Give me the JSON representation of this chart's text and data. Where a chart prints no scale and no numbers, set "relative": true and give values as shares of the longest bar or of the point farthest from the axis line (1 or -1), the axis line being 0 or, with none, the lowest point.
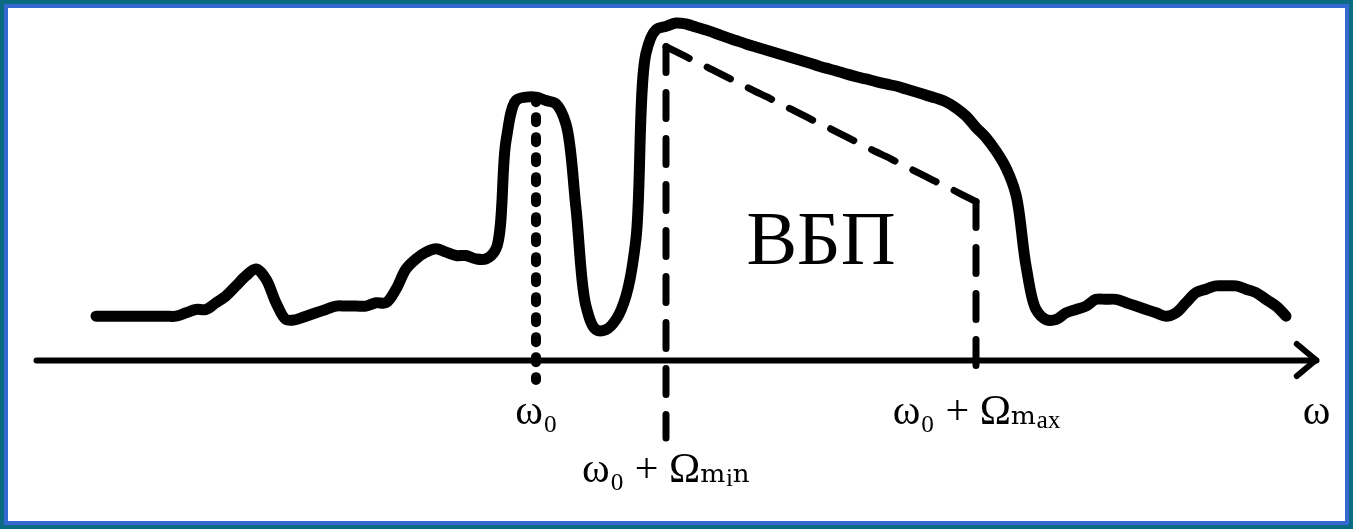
{
  "chart_data": {
    "type": "line",
    "relative": true,
    "categories": [
      null,
      null,
      null,
      null,
      null,
      null,
      null,
      null,
      null,
      null,
      null,
      null,
      null,
      null,
      null,
      null,
      null,
      null,
      null,
      null,
      null,
      null,
      null,
      null,
      null,
      null,
      null,
      null,
      null,
      null,
      null,
      null,
      null,
      null,
      null,
      null,
      null,
      null,
      null,
      null,
      null,
      null,
      null,
      null,
      null,
      null,
      null,
      null,
      null,
      null,
      "ω₀",
      null,
      null,
      null,
      null,
      null,
      null,
      null,
      null,
      null,
      null,
      null,
      null,
      "ω₀ + Ωₘᵢₙ",
      null,
      null,
      null,
      null,
      null,
      null,
      null,
      null,
      null,
      null,
      null,
      null,
      null,
      null,
      null,
      null,
      null,
      null,
      null,
      null,
      null,
      null,
      null,
      null,
      null,
      null,
      null,
      null,
      null,
      null,
      "ω₀ + Ωₘₐₓ",
      null,
      null,
      null,
      null,
      null,
      null,
      null,
      null,
      null,
      null,
      null,
      null,
      null,
      null,
      null,
      null,
      null,
      null,
      null,
      null,
      null,
      null,
      null,
      null,
      null,
      null,
      null,
      null,
      null,
      null,
      null,
      null,
      null,
      "ω"
    ],
    "series": [
      {
        "color": "#000000",
        "values": [
          null,
          null,
          null,
          null,
          null,
          null,
          0.13,
          0.13,
          0.13,
          0.13,
          0.13,
          0.13,
          0.13,
          0.13,
          0.13,
          0.14,
          0.15,
          0.15,
          0.17,
          0.19,
          0.22,
          0.25,
          0.27,
          0.24,
          0.17,
          0.12,
          0.12,
          0.13,
          0.14,
          0.15,
          0.16,
          0.16,
          0.16,
          0.16,
          0.17,
          0.17,
          0.21,
          0.27,
          0.3,
          0.32,
          0.33,
          0.32,
          0.31,
          0.31,
          0.3,
          0.3,
          0.33,
          0.65,
          0.77,
          0.78,
          0.78,
          0.77,
          0.76,
          0.7,
          0.45,
          0.16,
          0.09,
          0.09,
          0.12,
          0.19,
          0.36,
          0.91,
          0.98,
          0.99,
          1.0,
          0.997,
          0.988,
          0.979,
          0.969,
          0.958,
          0.948,
          0.938,
          0.929,
          0.92,
          0.911,
          0.902,
          0.893,
          0.884,
          0.875,
          0.866,
          0.858,
          0.849,
          0.841,
          0.834,
          0.826,
          0.819,
          0.813,
          0.804,
          0.795,
          0.786,
          0.777,
          0.766,
          0.748,
          0.724,
          0.69,
          0.66,
          0.62,
          0.57,
          0.49,
          0.28,
          0.15,
          0.12,
          0.12,
          0.14,
          0.15,
          0.16,
          0.18,
          0.18,
          0.18,
          0.17,
          0.16,
          0.15,
          0.14,
          0.13,
          0.14,
          0.17,
          0.2,
          0.21,
          0.22,
          0.22,
          0.22,
          0.21,
          0.2,
          0.18,
          0.16,
          0.13,
          null,
          null,
          null
        ]
      },
      {
        "name": "ВБП",
        "color": "#000000",
        "line_style": "dashed",
        "values": [
          null,
          null,
          null,
          null,
          null,
          null,
          null,
          null,
          null,
          null,
          null,
          null,
          null,
          null,
          null,
          null,
          null,
          null,
          null,
          null,
          null,
          null,
          null,
          null,
          null,
          null,
          null,
          null,
          null,
          null,
          null,
          null,
          null,
          null,
          null,
          null,
          null,
          null,
          null,
          null,
          null,
          null,
          null,
          null,
          null,
          null,
          null,
          null,
          null,
          null,
          null,
          null,
          null,
          null,
          null,
          null,
          null,
          null,
          null,
          null,
          null,
          null,
          null,
          0.93,
          0.915,
          0.9,
          0.885,
          0.871,
          0.856,
          0.841,
          0.826,
          0.811,
          0.796,
          0.782,
          0.767,
          0.752,
          0.737,
          0.722,
          0.707,
          0.693,
          0.678,
          0.663,
          0.648,
          0.633,
          0.618,
          0.604,
          0.589,
          0.574,
          0.559,
          0.544,
          0.529,
          0.515,
          0.5,
          0.485,
          0.47,
          null,
          null,
          null,
          null,
          null,
          null,
          null,
          null,
          null,
          null,
          null,
          null,
          null,
          null,
          null,
          null,
          null,
          null,
          null,
          null,
          null,
          null,
          null,
          null,
          null,
          null,
          null,
          null,
          null,
          null,
          null,
          null,
          null,
          null
        ]
      }
    ],
    "ref_lines": [
      {
        "axis": "x",
        "value": "ω₀",
        "line_style": "dotted",
        "color": "#000000"
      },
      {
        "axis": "x",
        "value": "ω₀ + Ωₘᵢₙ",
        "line_style": "dashed",
        "color": "#000000"
      },
      {
        "axis": "x",
        "value": "ω₀ + Ωₘₐₓ",
        "line_style": "dashed",
        "color": "#000000"
      }
    ]
  }
}
